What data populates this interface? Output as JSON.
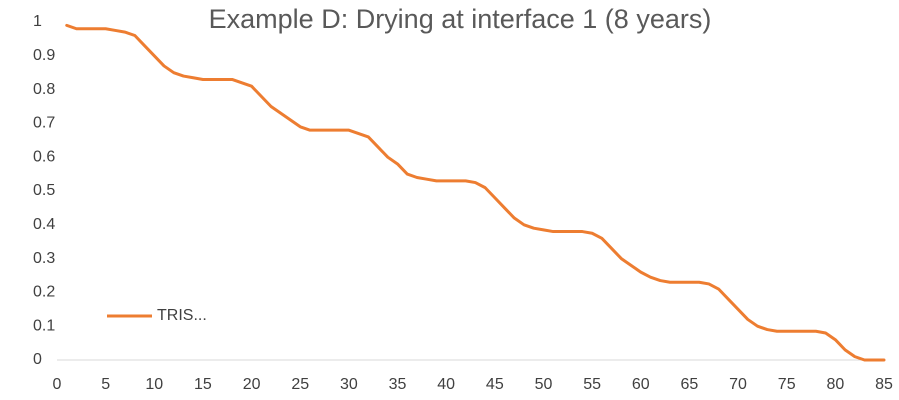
{
  "chart_data": {
    "type": "line",
    "title": "Example D: Drying at interface 1 (8 years)",
    "x": [
      1,
      2,
      3,
      4,
      5,
      6,
      7,
      8,
      9,
      10,
      11,
      12,
      13,
      14,
      15,
      16,
      17,
      18,
      19,
      20,
      21,
      22,
      23,
      24,
      25,
      26,
      27,
      28,
      29,
      30,
      31,
      32,
      33,
      34,
      35,
      36,
      37,
      38,
      39,
      40,
      41,
      42,
      43,
      44,
      45,
      46,
      47,
      48,
      49,
      50,
      51,
      52,
      53,
      54,
      55,
      56,
      57,
      58,
      59,
      60,
      61,
      62,
      63,
      64,
      65,
      66,
      67,
      68,
      69,
      70,
      71,
      72,
      73,
      74,
      75,
      76,
      77,
      78,
      79,
      80,
      81,
      82,
      83,
      84,
      85
    ],
    "series": [
      {
        "name": "TRIS...",
        "color": "#ED7D31",
        "values": [
          0.99,
          0.98,
          0.98,
          0.98,
          0.98,
          0.975,
          0.97,
          0.96,
          0.93,
          0.9,
          0.87,
          0.85,
          0.84,
          0.835,
          0.83,
          0.83,
          0.83,
          0.83,
          0.82,
          0.81,
          0.78,
          0.75,
          0.73,
          0.71,
          0.69,
          0.68,
          0.68,
          0.68,
          0.68,
          0.68,
          0.67,
          0.66,
          0.63,
          0.6,
          0.58,
          0.55,
          0.54,
          0.535,
          0.53,
          0.53,
          0.53,
          0.53,
          0.525,
          0.51,
          0.48,
          0.45,
          0.42,
          0.4,
          0.39,
          0.385,
          0.38,
          0.38,
          0.38,
          0.38,
          0.375,
          0.36,
          0.33,
          0.3,
          0.28,
          0.26,
          0.245,
          0.235,
          0.23,
          0.23,
          0.23,
          0.23,
          0.225,
          0.21,
          0.18,
          0.15,
          0.12,
          0.1,
          0.09,
          0.085,
          0.085,
          0.085,
          0.085,
          0.085,
          0.08,
          0.06,
          0.03,
          0.01,
          0.0,
          0.0,
          0.0
        ]
      }
    ],
    "xlim": [
      0,
      85
    ],
    "xticks": [
      0,
      5,
      10,
      15,
      20,
      25,
      30,
      35,
      40,
      45,
      50,
      55,
      60,
      65,
      70,
      75,
      80,
      85
    ],
    "ylim": [
      0,
      1
    ],
    "yticks": [
      0,
      0.1,
      0.2,
      0.3,
      0.4,
      0.5,
      0.6,
      0.7,
      0.8,
      0.9,
      1
    ],
    "grid": false,
    "legend": "lower left"
  }
}
